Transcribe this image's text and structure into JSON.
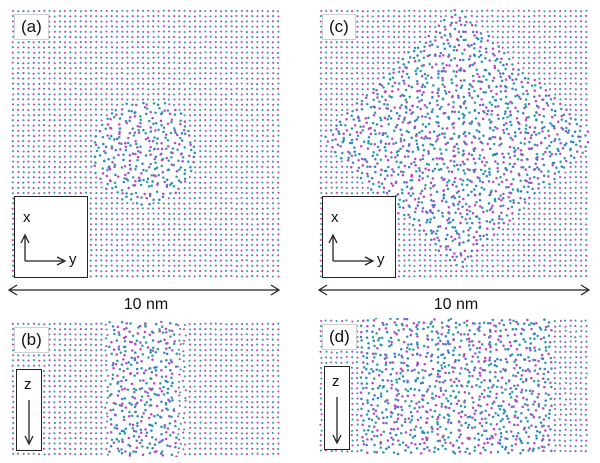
{
  "panels": {
    "a": {
      "label": "(a)",
      "axis_1": "x",
      "axis_2": "y"
    },
    "b": {
      "label": "(b)",
      "axis_1": "z"
    },
    "c": {
      "label": "(c)",
      "axis_1": "x",
      "axis_2": "y"
    },
    "d": {
      "label": "(d)",
      "axis_1": "z"
    }
  },
  "scale_bars": {
    "left": "10 nm",
    "right": "10 nm"
  },
  "colors": {
    "atom_magenta": "#c040c8",
    "atom_teal": "#20a0a8",
    "atom_blue": "#3080c8"
  }
}
